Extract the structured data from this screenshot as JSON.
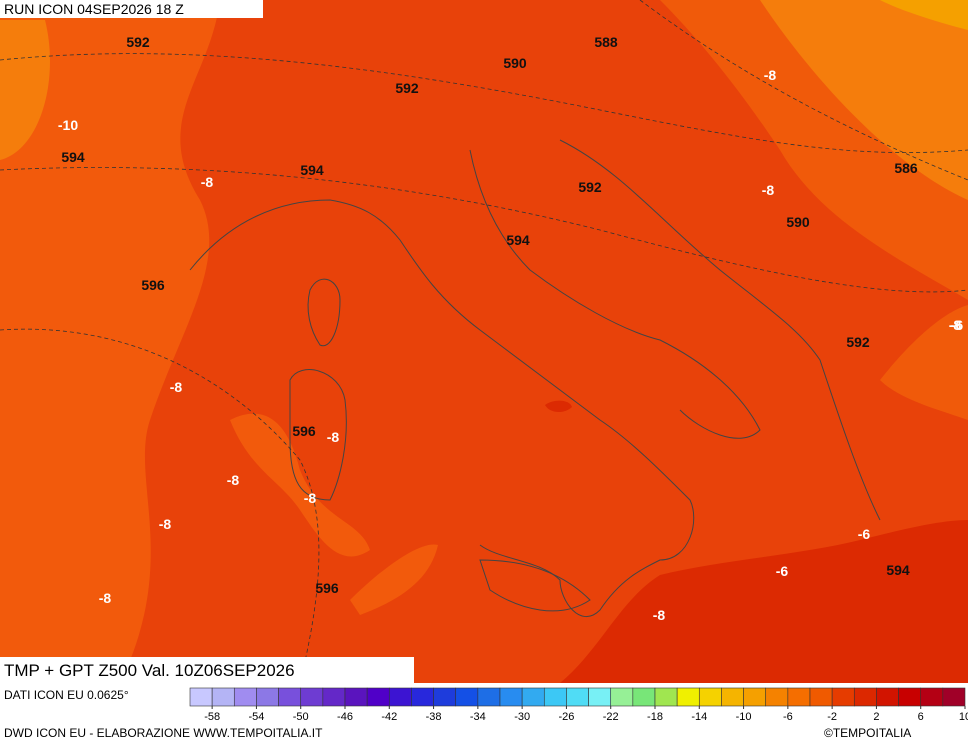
{
  "header": {
    "run": "RUN ICON 04SEP2026 18 Z"
  },
  "map": {
    "height_labels": [
      592,
      588,
      590,
      592,
      594,
      594,
      592,
      586,
      590,
      594,
      596,
      592,
      596,
      594,
      596
    ],
    "temp_labels": [
      -8,
      -10,
      -8,
      -8,
      -8,
      -8,
      -8,
      -8,
      -8,
      -8,
      -8,
      -6,
      -6,
      -8,
      -6
    ]
  },
  "footer": {
    "title": "TMP + GPT Z500 Val. 10Z06SEP2026",
    "source": "DATI ICON EU 0.0625°",
    "credit": "DWD ICON EU - ELABORAZIONE WWW.TEMPOITALIA.IT",
    "copyright": "©TEMPOITALIA"
  },
  "colorbar": {
    "range": [
      -60,
      10
    ],
    "colors": [
      "#c8c8ff",
      "#b4b4f5",
      "#a08cf0",
      "#8c78e6",
      "#7850dc",
      "#6e3cd2",
      "#6428c8",
      "#5a14be",
      "#5000c8",
      "#3c14d2",
      "#2828dc",
      "#1e3cdc",
      "#1450e6",
      "#1e6ee6",
      "#288cf0",
      "#32aaf0",
      "#3cc8f5",
      "#50dcf5",
      "#78f0f5",
      "#96f096",
      "#78e678",
      "#a0e650",
      "#f0f000",
      "#f5d200",
      "#f5b400",
      "#f5a000",
      "#f58200",
      "#f56e00",
      "#f05a00",
      "#e63c00",
      "#dc2800",
      "#d21400",
      "#c80000",
      "#b40014",
      "#a00028"
    ],
    "ticks": [
      -58,
      -54,
      -50,
      -46,
      -42,
      -38,
      -34,
      -30,
      -26,
      -22,
      -18,
      -14,
      -10,
      -6,
      -2,
      2,
      6,
      10
    ]
  }
}
